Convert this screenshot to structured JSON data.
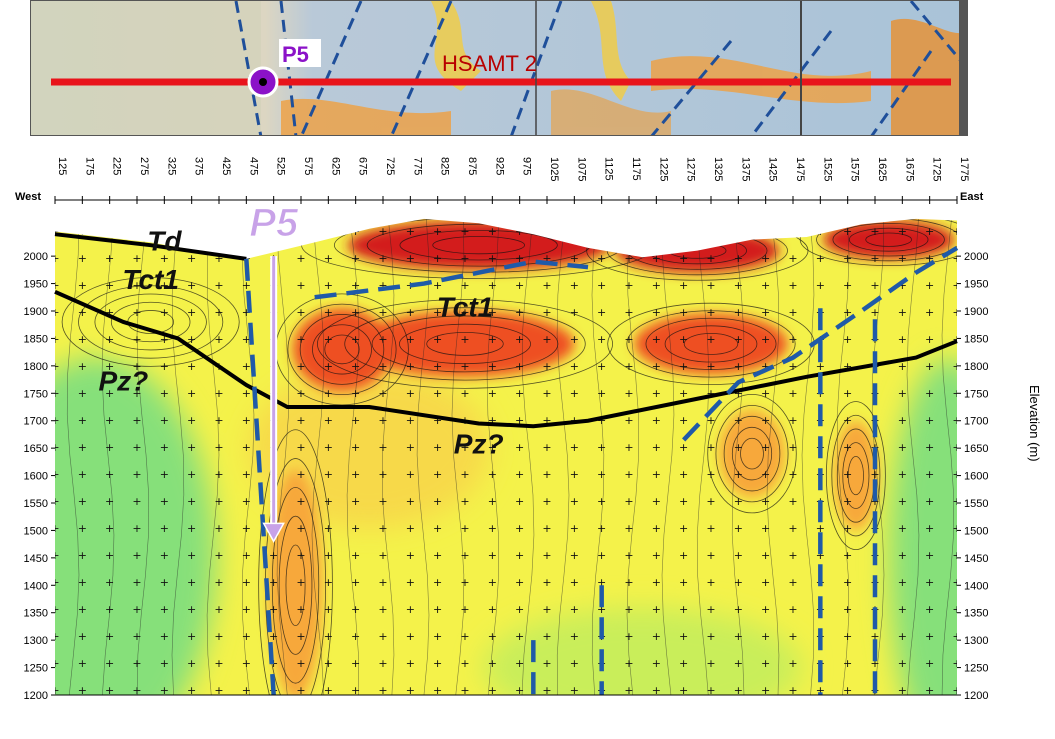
{
  "map_strip": {
    "line_label": "HSAMT 2",
    "point_label": "P5",
    "colors": {
      "line": "#e8141b",
      "point_fill": "#8b12c8",
      "label": "#b80000",
      "fault": "#1f4f9a"
    }
  },
  "chart_data": {
    "type": "heatmap",
    "title": "",
    "xlabel": "",
    "ylabel": "Elevation (m)",
    "west_label": "West",
    "east_label": "East",
    "x_stations": [
      "125",
      "175",
      "225",
      "275",
      "325",
      "375",
      "425",
      "475",
      "525",
      "575",
      "625",
      "675",
      "725",
      "775",
      "825",
      "875",
      "925",
      "975",
      "1025",
      "1075",
      "1125",
      "1175",
      "1225",
      "1275",
      "1325",
      "1375",
      "1425",
      "1475",
      "1525",
      "1575",
      "1625",
      "1675",
      "1725",
      "1775"
    ],
    "xlim": [
      125,
      1775
    ],
    "y_ticks": [
      "2000",
      "1950",
      "1900",
      "1850",
      "1800",
      "1750",
      "1700",
      "1650",
      "1600",
      "1550",
      "1500",
      "1450",
      "1400",
      "1350",
      "1300",
      "1250",
      "1200"
    ],
    "ylim": [
      1200,
      2075
    ],
    "topography": [
      [
        125,
        2045
      ],
      [
        300,
        2025
      ],
      [
        475,
        1995
      ],
      [
        600,
        2025
      ],
      [
        700,
        2050
      ],
      [
        800,
        2068
      ],
      [
        900,
        2060
      ],
      [
        1000,
        2040
      ],
      [
        1100,
        2015
      ],
      [
        1200,
        1998
      ],
      [
        1300,
        2010
      ],
      [
        1400,
        2030
      ],
      [
        1500,
        2035
      ],
      [
        1600,
        2058
      ],
      [
        1700,
        2068
      ],
      [
        1775,
        2065
      ]
    ],
    "unit_contacts": [
      {
        "name": "Td base",
        "points": [
          [
            125,
            2040
          ],
          [
            300,
            2020
          ],
          [
            475,
            1995
          ]
        ]
      },
      {
        "name": "Tct1 base",
        "points": [
          [
            125,
            1935
          ],
          [
            250,
            1880
          ],
          [
            350,
            1850
          ],
          [
            475,
            1765
          ],
          [
            550,
            1725
          ],
          [
            700,
            1725
          ],
          [
            900,
            1695
          ],
          [
            1000,
            1690
          ],
          [
            1100,
            1700
          ],
          [
            1300,
            1740
          ],
          [
            1500,
            1780
          ],
          [
            1700,
            1815
          ],
          [
            1775,
            1845
          ]
        ]
      }
    ],
    "faults": [
      [
        [
          475,
          1995
        ],
        [
          525,
          1200
        ]
      ],
      [
        [
          600,
          1925
        ],
        [
          800,
          1950
        ],
        [
          1000,
          1990
        ],
        [
          1100,
          1980
        ]
      ],
      [
        [
          1275,
          1665
        ],
        [
          1375,
          1770
        ],
        [
          1475,
          1815
        ],
        [
          1600,
          1900
        ],
        [
          1700,
          1970
        ],
        [
          1775,
          2015
        ]
      ],
      [
        [
          1525,
          1905
        ],
        [
          1525,
          1200
        ]
      ],
      [
        [
          1625,
          1885
        ],
        [
          1625,
          1200
        ]
      ],
      [
        [
          1000,
          1300
        ],
        [
          1000,
          1200
        ]
      ],
      [
        [
          1125,
          1400
        ],
        [
          1125,
          1200
        ]
      ]
    ],
    "unit_labels": [
      {
        "text": "Td",
        "x": 325,
        "y": 2010
      },
      {
        "text": "Tct1",
        "x": 300,
        "y": 1940
      },
      {
        "text": "Tct1",
        "x": 875,
        "y": 1890
      },
      {
        "text": "Pz?",
        "x": 250,
        "y": 1755
      },
      {
        "text": "Pz?",
        "x": 900,
        "y": 1640
      }
    ],
    "drillhole": {
      "label": "P5",
      "x": 525,
      "y_top": 2000,
      "y_bottom": 1480
    },
    "anomalies": [
      {
        "x": 650,
        "y": 1830,
        "rx": 90,
        "ry": 75,
        "level": "high"
      },
      {
        "x": 900,
        "y": 2020,
        "rx": 240,
        "ry": 45,
        "level": "very_high"
      },
      {
        "x": 1300,
        "y": 2010,
        "rx": 150,
        "ry": 40,
        "level": "very_high"
      },
      {
        "x": 1650,
        "y": 2030,
        "rx": 120,
        "ry": 35,
        "level": "very_high"
      },
      {
        "x": 875,
        "y": 1840,
        "rx": 200,
        "ry": 60,
        "level": "high"
      },
      {
        "x": 1325,
        "y": 1840,
        "rx": 140,
        "ry": 55,
        "level": "high"
      },
      {
        "x": 565,
        "y": 1400,
        "rx": 50,
        "ry": 210,
        "level": "medium_high"
      },
      {
        "x": 1400,
        "y": 1640,
        "rx": 60,
        "ry": 80,
        "level": "medium_high"
      },
      {
        "x": 1590,
        "y": 1600,
        "rx": 40,
        "ry": 100,
        "level": "medium_high"
      },
      {
        "x": 300,
        "y": 1880,
        "rx": 120,
        "ry": 60,
        "level": "medium"
      }
    ],
    "colors": {
      "low": "#86e07a",
      "medium": "#f4f24a",
      "medium_high": "#f7a83a",
      "high": "#ee5020",
      "very_high": "#d31b1b",
      "contact": "#000000",
      "fault": "#1f5aa8",
      "drillhole": "#c8a2e8"
    }
  }
}
